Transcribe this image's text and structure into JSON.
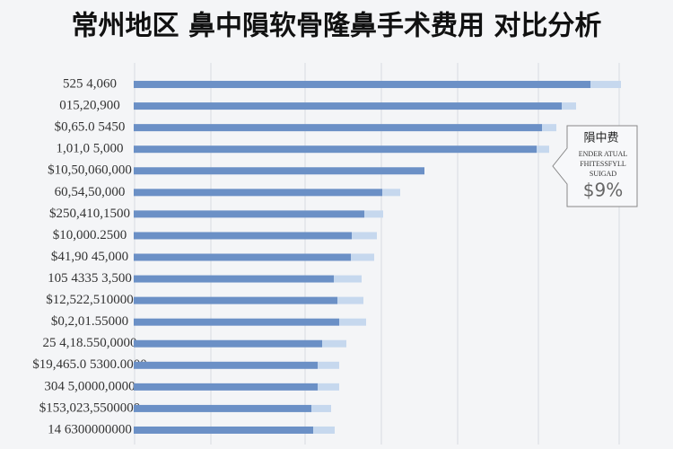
{
  "chart_data": {
    "type": "bar",
    "orientation": "horizontal",
    "stacked": true,
    "title": "常州地区 鼻中隕软骨隆鼻手术费用 对比分析",
    "categories": [
      "525 4,060",
      "015,20,900",
      "$0,65.0 5450",
      "1,01,0 5,000",
      "$10,50,060,000",
      "60,54,50,000",
      "$250,410,1500",
      "$10,000.2500",
      "$41,90 45,000",
      "105 4335 3,500",
      "$12,522,510000",
      "$0,2,01.55000",
      "25 4,18.550,0000",
      "$19,465.0 5300.0000",
      "304 5,0000,0000",
      "$153,023,5500000",
      "14 6300000000"
    ],
    "series": [
      {
        "color": "#6b90c6",
        "values": [
          509,
          477,
          455,
          449,
          324,
          277,
          257,
          243,
          242,
          223,
          227,
          229,
          210,
          205,
          205,
          198,
          200
        ]
      },
      {
        "color": "#c6d8ee",
        "values": [
          34,
          16,
          16,
          14,
          0,
          20,
          21,
          28,
          26,
          31,
          29,
          30,
          27,
          24,
          24,
          22,
          24
        ]
      }
    ],
    "xlim": [
      0,
      600
    ],
    "annotation": {
      "title": "隕中费",
      "lines": [
        "ENDER ATUAL",
        "FHITESSFYLL",
        "SUIGAD"
      ],
      "value": "$9%"
    }
  }
}
